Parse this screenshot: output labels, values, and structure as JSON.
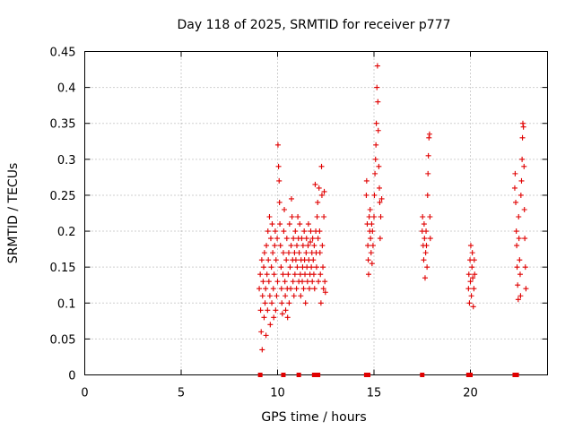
{
  "chart_data": {
    "type": "scatter",
    "title": "Day 118 of 2025, SRMTID for receiver p777",
    "xlabel": "GPS time / hours",
    "ylabel": "SRMTID / TECUs",
    "xlim": [
      0,
      24
    ],
    "ylim": [
      0,
      0.45
    ],
    "x_ticks": [
      0,
      5,
      10,
      15,
      20
    ],
    "y_ticks": [
      0,
      0.05,
      0.1,
      0.15,
      0.2,
      0.25,
      0.3,
      0.35,
      0.4,
      0.45
    ],
    "x_tick_labels": [
      "0",
      "5",
      "10",
      "15",
      "20"
    ],
    "y_tick_labels": [
      "0",
      "0.05",
      "0.1",
      "0.15",
      "0.2",
      "0.25",
      "0.3",
      "0.35",
      "0.4",
      "0.45"
    ],
    "grid": true,
    "marker_color": "#e00000",
    "baseline_markers": {
      "y": 0,
      "x": [
        9.1,
        10.3,
        11.1,
        11.9,
        12.0,
        12.1,
        14.6,
        14.7,
        17.5,
        19.9,
        20.0,
        22.3,
        22.4
      ]
    },
    "series": [
      {
        "name": "SRMTID",
        "points": [
          [
            9.05,
            0.12
          ],
          [
            9.1,
            0.14
          ],
          [
            9.12,
            0.09
          ],
          [
            9.15,
            0.06
          ],
          [
            9.18,
            0.16
          ],
          [
            9.2,
            0.035
          ],
          [
            9.22,
            0.11
          ],
          [
            9.25,
            0.13
          ],
          [
            9.28,
            0.15
          ],
          [
            9.3,
            0.08
          ],
          [
            9.32,
            0.17
          ],
          [
            9.35,
            0.1
          ],
          [
            9.38,
            0.12
          ],
          [
            9.4,
            0.055
          ],
          [
            9.42,
            0.18
          ],
          [
            9.45,
            0.14
          ],
          [
            9.48,
            0.09
          ],
          [
            9.5,
            0.2
          ],
          [
            9.52,
            0.16
          ],
          [
            9.55,
            0.13
          ],
          [
            9.58,
            0.22
          ],
          [
            9.6,
            0.11
          ],
          [
            9.62,
            0.07
          ],
          [
            9.65,
            0.19
          ],
          [
            9.68,
            0.15
          ],
          [
            9.7,
            0.1
          ],
          [
            9.72,
            0.21
          ],
          [
            9.75,
            0.17
          ],
          [
            9.78,
            0.12
          ],
          [
            9.8,
            0.08
          ],
          [
            9.82,
            0.14
          ],
          [
            9.85,
            0.18
          ],
          [
            9.88,
            0.2
          ],
          [
            9.9,
            0.09
          ],
          [
            9.92,
            0.16
          ],
          [
            9.95,
            0.11
          ],
          [
            9.98,
            0.19
          ],
          [
            10.0,
            0.13
          ],
          [
            10.02,
            0.32
          ],
          [
            10.05,
            0.29
          ],
          [
            10.08,
            0.27
          ],
          [
            10.1,
            0.24
          ],
          [
            10.12,
            0.21
          ],
          [
            10.15,
            0.18
          ],
          [
            10.18,
            0.15
          ],
          [
            10.2,
            0.12
          ],
          [
            10.22,
            0.1
          ],
          [
            10.25,
            0.085
          ],
          [
            10.28,
            0.14
          ],
          [
            10.3,
            0.17
          ],
          [
            10.32,
            0.2
          ],
          [
            10.35,
            0.23
          ],
          [
            10.38,
            0.13
          ],
          [
            10.4,
            0.11
          ],
          [
            10.42,
            0.09
          ],
          [
            10.45,
            0.16
          ],
          [
            10.48,
            0.19
          ],
          [
            10.5,
            0.12
          ],
          [
            10.52,
            0.08
          ],
          [
            10.55,
            0.14
          ],
          [
            10.58,
            0.17
          ],
          [
            10.6,
            0.1
          ],
          [
            10.62,
            0.21
          ],
          [
            10.65,
            0.15
          ],
          [
            10.68,
            0.12
          ],
          [
            10.7,
            0.18
          ],
          [
            10.72,
            0.245
          ],
          [
            10.75,
            0.22
          ],
          [
            10.78,
            0.16
          ],
          [
            10.8,
            0.13
          ],
          [
            10.82,
            0.19
          ],
          [
            10.85,
            0.11
          ],
          [
            10.88,
            0.17
          ],
          [
            10.9,
            0.14
          ],
          [
            10.92,
            0.2
          ],
          [
            10.95,
            0.16
          ],
          [
            10.98,
            0.12
          ],
          [
            11.0,
            0.18
          ],
          [
            11.02,
            0.15
          ],
          [
            11.05,
            0.22
          ],
          [
            11.08,
            0.19
          ],
          [
            11.1,
            0.13
          ],
          [
            11.12,
            0.17
          ],
          [
            11.15,
            0.21
          ],
          [
            11.18,
            0.14
          ],
          [
            11.2,
            0.11
          ],
          [
            11.22,
            0.16
          ],
          [
            11.25,
            0.19
          ],
          [
            11.28,
            0.13
          ],
          [
            11.3,
            0.15
          ],
          [
            11.32,
            0.18
          ],
          [
            11.35,
            0.12
          ],
          [
            11.38,
            0.2
          ],
          [
            11.4,
            0.16
          ],
          [
            11.42,
            0.14
          ],
          [
            11.45,
            0.1
          ],
          [
            11.48,
            0.17
          ],
          [
            11.5,
            0.19
          ],
          [
            11.52,
            0.15
          ],
          [
            11.55,
            0.13
          ],
          [
            11.58,
            0.18
          ],
          [
            11.6,
            0.21
          ],
          [
            11.62,
            0.16
          ],
          [
            11.65,
            0.12
          ],
          [
            11.68,
            0.14
          ],
          [
            11.7,
            0.185
          ],
          [
            11.72,
            0.2
          ],
          [
            11.75,
            0.15
          ],
          [
            11.78,
            0.17
          ],
          [
            11.8,
            0.13
          ],
          [
            11.82,
            0.19
          ],
          [
            11.85,
            0.16
          ],
          [
            11.88,
            0.14
          ],
          [
            11.9,
            0.18
          ],
          [
            11.92,
            0.12
          ],
          [
            11.95,
            0.265
          ],
          [
            11.98,
            0.2
          ],
          [
            12.0,
            0.17
          ],
          [
            12.02,
            0.15
          ],
          [
            12.05,
            0.22
          ],
          [
            12.08,
            0.24
          ],
          [
            12.1,
            0.19
          ],
          [
            12.12,
            0.13
          ],
          [
            12.15,
            0.26
          ],
          [
            12.18,
            0.2
          ],
          [
            12.2,
            0.17
          ],
          [
            12.22,
            0.14
          ],
          [
            12.25,
            0.1
          ],
          [
            12.28,
            0.29
          ],
          [
            12.3,
            0.25
          ],
          [
            12.32,
            0.18
          ],
          [
            12.35,
            0.15
          ],
          [
            12.38,
            0.12
          ],
          [
            12.4,
            0.22
          ],
          [
            12.42,
            0.255
          ],
          [
            12.45,
            0.13
          ],
          [
            12.48,
            0.115
          ],
          [
            14.6,
            0.25
          ],
          [
            14.62,
            0.27
          ],
          [
            14.65,
            0.21
          ],
          [
            14.68,
            0.18
          ],
          [
            14.7,
            0.16
          ],
          [
            14.72,
            0.14
          ],
          [
            14.75,
            0.22
          ],
          [
            14.78,
            0.2
          ],
          [
            14.8,
            0.23
          ],
          [
            14.82,
            0.19
          ],
          [
            14.85,
            0.17
          ],
          [
            14.88,
            0.21
          ],
          [
            14.9,
            0.155
          ],
          [
            14.92,
            0.2
          ],
          [
            14.95,
            0.18
          ],
          [
            15.0,
            0.22
          ],
          [
            15.02,
            0.25
          ],
          [
            15.05,
            0.28
          ],
          [
            15.08,
            0.3
          ],
          [
            15.1,
            0.32
          ],
          [
            15.12,
            0.35
          ],
          [
            15.15,
            0.4
          ],
          [
            15.18,
            0.43
          ],
          [
            15.2,
            0.38
          ],
          [
            15.22,
            0.34
          ],
          [
            15.25,
            0.29
          ],
          [
            15.28,
            0.26
          ],
          [
            15.3,
            0.24
          ],
          [
            15.32,
            0.19
          ],
          [
            15.35,
            0.22
          ],
          [
            15.4,
            0.245
          ],
          [
            17.5,
            0.2
          ],
          [
            17.52,
            0.22
          ],
          [
            17.55,
            0.18
          ],
          [
            17.58,
            0.16
          ],
          [
            17.6,
            0.21
          ],
          [
            17.62,
            0.19
          ],
          [
            17.65,
            0.135
          ],
          [
            17.68,
            0.17
          ],
          [
            17.7,
            0.2
          ],
          [
            17.72,
            0.18
          ],
          [
            17.75,
            0.15
          ],
          [
            17.78,
            0.25
          ],
          [
            17.8,
            0.28
          ],
          [
            17.82,
            0.305
          ],
          [
            17.85,
            0.33
          ],
          [
            17.88,
            0.335
          ],
          [
            17.9,
            0.22
          ],
          [
            17.92,
            0.19
          ],
          [
            19.9,
            0.12
          ],
          [
            19.92,
            0.14
          ],
          [
            19.95,
            0.1
          ],
          [
            19.98,
            0.16
          ],
          [
            20.0,
            0.13
          ],
          [
            20.02,
            0.18
          ],
          [
            20.05,
            0.11
          ],
          [
            20.08,
            0.15
          ],
          [
            20.1,
            0.17
          ],
          [
            20.12,
            0.135
          ],
          [
            20.15,
            0.095
          ],
          [
            20.18,
            0.12
          ],
          [
            20.2,
            0.16
          ],
          [
            20.22,
            0.14
          ],
          [
            22.3,
            0.26
          ],
          [
            22.32,
            0.28
          ],
          [
            22.35,
            0.24
          ],
          [
            22.38,
            0.2
          ],
          [
            22.4,
            0.18
          ],
          [
            22.42,
            0.15
          ],
          [
            22.45,
            0.125
          ],
          [
            22.48,
            0.105
          ],
          [
            22.5,
            0.22
          ],
          [
            22.52,
            0.19
          ],
          [
            22.55,
            0.16
          ],
          [
            22.58,
            0.14
          ],
          [
            22.6,
            0.11
          ],
          [
            22.62,
            0.25
          ],
          [
            22.65,
            0.27
          ],
          [
            22.68,
            0.3
          ],
          [
            22.7,
            0.33
          ],
          [
            22.72,
            0.35
          ],
          [
            22.75,
            0.345
          ],
          [
            22.78,
            0.29
          ],
          [
            22.8,
            0.23
          ],
          [
            22.82,
            0.19
          ],
          [
            22.85,
            0.15
          ],
          [
            22.88,
            0.12
          ]
        ]
      }
    ]
  }
}
